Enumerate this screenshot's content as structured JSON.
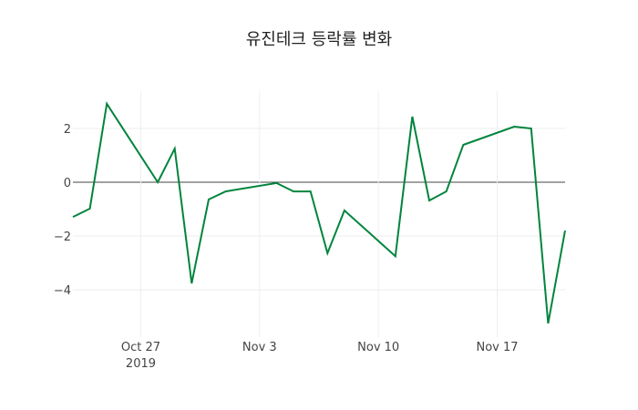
{
  "chart_data": {
    "type": "line",
    "title": "유진테크 등락률 변화",
    "xlabel": "",
    "ylabel": "",
    "x": [
      "2019-10-23",
      "2019-10-24",
      "2019-10-25",
      "2019-10-28",
      "2019-10-29",
      "2019-10-30",
      "2019-10-31",
      "2019-11-01",
      "2019-11-04",
      "2019-11-05",
      "2019-11-06",
      "2019-11-07",
      "2019-11-08",
      "2019-11-11",
      "2019-11-12",
      "2019-11-13",
      "2019-11-14",
      "2019-11-15",
      "2019-11-18",
      "2019-11-19",
      "2019-11-20",
      "2019-11-21"
    ],
    "series": [
      {
        "name": "등락률",
        "color": "#00843d",
        "values": [
          -1.29,
          -0.98,
          2.92,
          0.0,
          1.25,
          -3.76,
          -0.64,
          -0.34,
          -0.03,
          -0.34,
          -0.34,
          -2.64,
          -1.05,
          -2.75,
          2.44,
          -0.68,
          -0.34,
          1.39,
          2.07,
          2.0,
          -5.25,
          -1.8
        ]
      }
    ],
    "xlim": [
      "2019-10-23",
      "2019-11-21"
    ],
    "ylim": [
      -5.76,
      3.39
    ],
    "x_ticks": [
      {
        "date": "2019-10-27",
        "label": "Oct 27",
        "sublabel": "2019"
      },
      {
        "date": "2019-11-03",
        "label": "Nov 3"
      },
      {
        "date": "2019-11-10",
        "label": "Nov 10"
      },
      {
        "date": "2019-11-17",
        "label": "Nov 17"
      }
    ],
    "y_ticks": [
      {
        "value": 2,
        "label": "2"
      },
      {
        "value": 0,
        "label": "0"
      },
      {
        "value": -2,
        "label": "−2"
      },
      {
        "value": -4,
        "label": "−4"
      }
    ],
    "grid": true,
    "zero_line": true
  }
}
